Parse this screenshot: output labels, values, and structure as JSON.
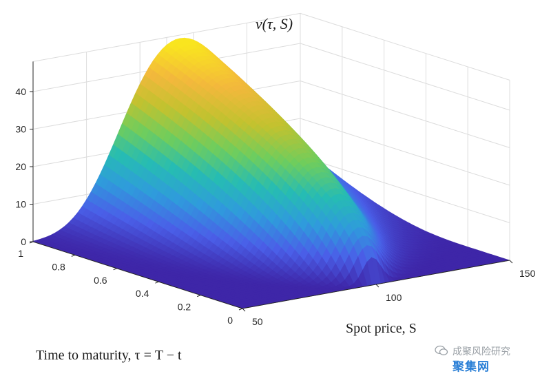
{
  "chart_data": {
    "type": "surface3d",
    "title": "ν(τ, S)",
    "xlabel": "Time to maturity, τ = T − t",
    "ylabel": "Spot price, S",
    "zlabel": "",
    "tau_range": [
      0,
      1
    ],
    "s_range": [
      50,
      150
    ],
    "z_range": [
      0,
      40
    ],
    "tau_ticks": [
      "0",
      "0.2",
      "0.4",
      "0.6",
      "0.8",
      "1"
    ],
    "s_ticks": [
      "50",
      "100",
      "150"
    ],
    "z_ticks": [
      "0",
      "10",
      "20",
      "30",
      "40"
    ],
    "peak": {
      "tau": 1,
      "s": 100,
      "z": 46
    },
    "colormap": [
      "#3e26a8",
      "#4a5fe8",
      "#2f9bdc",
      "#26bcb3",
      "#6fcd5d",
      "#c2c22f",
      "#f3b83c",
      "#f9e51f"
    ],
    "grid": true
  },
  "watermark": {
    "line1": "成聚风险研究",
    "line2": "聚集网"
  }
}
